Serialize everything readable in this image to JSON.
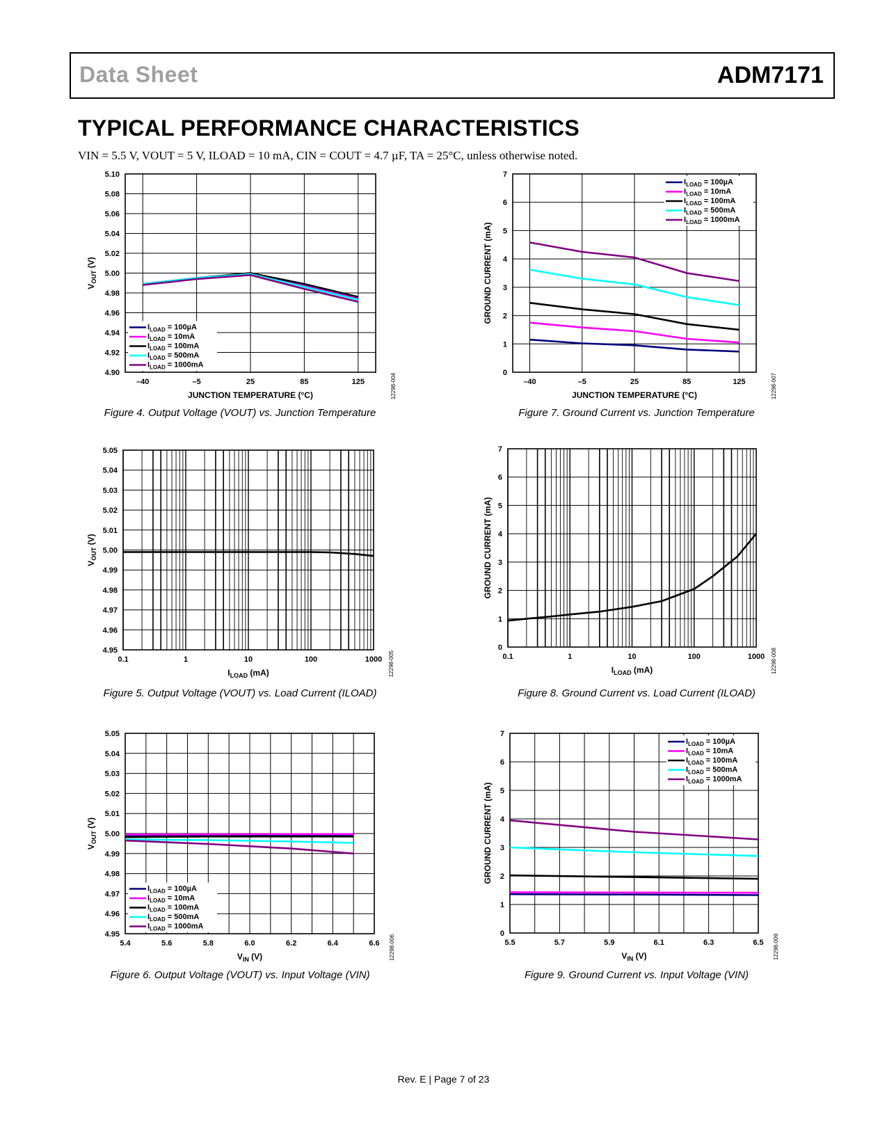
{
  "header": {
    "left": "Data Sheet",
    "right": "ADM7171"
  },
  "section_title": "TYPICAL PERFORMANCE CHARACTERISTICS",
  "conditions": "VIN = 5.5 V, VOUT = 5 V, ILOAD = 10 mA, CIN = COUT = 4.7 µF, TA = 25°C, unless otherwise noted.",
  "footer": "Rev. E | Page 7 of 23",
  "colors": {
    "100uA": "#00007f",
    "10mA": "#ff00ff",
    "100mA": "#000000",
    "500mA": "#00ffff",
    "1000mA": "#800080"
  },
  "chart_data": [
    {
      "id": "fig4",
      "type": "line",
      "caption": "Figure 4. Output Voltage (VOUT) vs. Junction Temperature",
      "code": "12298-004",
      "xlabel": "JUNCTION TEMPERATURE (°C)",
      "ylabel": "VOUT (V)",
      "xscale": "linear",
      "xticks": [
        -40,
        -5,
        25,
        85,
        125
      ],
      "xtick_labels": [
        "–40",
        "–5",
        "25",
        "85",
        "125"
      ],
      "xlim": [
        -40,
        125
      ],
      "yticks": [
        4.9,
        4.92,
        4.94,
        4.96,
        4.98,
        5.0,
        5.02,
        5.04,
        5.06,
        5.08,
        5.1
      ],
      "ytick_labels": [
        "4.90",
        "4.92",
        "4.94",
        "4.96",
        "4.98",
        "5.00",
        "5.02",
        "5.04",
        "5.06",
        "5.08",
        "5.10"
      ],
      "ylim": [
        4.9,
        5.1
      ],
      "x_grid_categorical": true,
      "legend": "bottom-left",
      "series": [
        {
          "name": "ILOAD = 100µA",
          "key": "100uA",
          "x": [
            -40,
            -5,
            25,
            85,
            125
          ],
          "y": [
            4.989,
            4.995,
            5.0,
            4.988,
            4.975
          ]
        },
        {
          "name": "ILOAD = 10mA",
          "key": "10mA",
          "x": [
            -40,
            -5,
            25,
            85,
            125
          ],
          "y": [
            4.989,
            4.995,
            4.999,
            4.987,
            4.974
          ]
        },
        {
          "name": "ILOAD = 100mA",
          "key": "100mA",
          "x": [
            -40,
            -5,
            25,
            85,
            125
          ],
          "y": [
            4.989,
            4.995,
            5.0,
            4.989,
            4.976
          ]
        },
        {
          "name": "ILOAD = 500mA",
          "key": "500mA",
          "x": [
            -40,
            -5,
            25,
            85,
            125
          ],
          "y": [
            4.989,
            4.995,
            4.999,
            4.986,
            4.973
          ]
        },
        {
          "name": "ILOAD = 1000mA",
          "key": "1000mA",
          "x": [
            -40,
            -5,
            25,
            85,
            125
          ],
          "y": [
            4.988,
            4.994,
            4.998,
            4.984,
            4.971
          ]
        }
      ]
    },
    {
      "id": "fig7",
      "type": "line",
      "caption": "Figure 7. Ground Current vs. Junction Temperature",
      "code": "12298-007",
      "xlabel": "JUNCTION TEMPERATURE (°C)",
      "ylabel": "GROUND CURRENT (mA)",
      "xscale": "linear",
      "xticks": [
        -40,
        -5,
        25,
        85,
        125
      ],
      "xtick_labels": [
        "–40",
        "–5",
        "25",
        "85",
        "125"
      ],
      "xlim": [
        -40,
        125
      ],
      "yticks": [
        0,
        1,
        2,
        3,
        4,
        5,
        6,
        7
      ],
      "ytick_labels": [
        "0",
        "1",
        "2",
        "3",
        "4",
        "5",
        "6",
        "7"
      ],
      "ylim": [
        0,
        7
      ],
      "x_grid_categorical": true,
      "legend": "top-right",
      "series": [
        {
          "name": "ILOAD = 100µA",
          "key": "100uA",
          "x": [
            -40,
            -5,
            25,
            85,
            125
          ],
          "y": [
            1.15,
            1.02,
            0.95,
            0.8,
            0.73
          ]
        },
        {
          "name": "ILOAD = 10mA",
          "key": "10mA",
          "x": [
            -40,
            -5,
            25,
            85,
            125
          ],
          "y": [
            1.75,
            1.58,
            1.45,
            1.18,
            1.05
          ]
        },
        {
          "name": "ILOAD = 100mA",
          "key": "100mA",
          "x": [
            -40,
            -5,
            25,
            85,
            125
          ],
          "y": [
            2.45,
            2.22,
            2.05,
            1.7,
            1.5
          ]
        },
        {
          "name": "ILOAD = 500mA",
          "key": "500mA",
          "x": [
            -40,
            -5,
            25,
            85,
            125
          ],
          "y": [
            3.62,
            3.3,
            3.1,
            2.65,
            2.37
          ]
        },
        {
          "name": "ILOAD = 1000mA",
          "key": "1000mA",
          "x": [
            -40,
            -5,
            25,
            85,
            125
          ],
          "y": [
            4.58,
            4.25,
            4.05,
            3.5,
            3.22
          ]
        }
      ]
    },
    {
      "id": "fig5",
      "type": "line",
      "caption": "Figure 5. Output Voltage (VOUT) vs. Load Current (ILOAD)",
      "code": "12298-005",
      "xlabel": "ILOAD (mA)",
      "ylabel": "VOUT (V)",
      "xscale": "log",
      "xticks": [
        0.1,
        1,
        10,
        100,
        1000
      ],
      "xtick_labels": [
        "0.1",
        "1",
        "10",
        "100",
        "1000"
      ],
      "xlim": [
        0.1,
        1000
      ],
      "yticks": [
        4.95,
        4.96,
        4.97,
        4.98,
        4.99,
        5.0,
        5.01,
        5.02,
        5.03,
        5.04,
        5.05
      ],
      "ytick_labels": [
        "4.95",
        "4.96",
        "4.97",
        "4.98",
        "4.99",
        "5.00",
        "5.01",
        "5.02",
        "5.03",
        "5.04",
        "5.05"
      ],
      "ylim": [
        4.95,
        5.05
      ],
      "series": [
        {
          "key": "100mA",
          "x": [
            0.1,
            1,
            10,
            100,
            200,
            500,
            1000
          ],
          "y": [
            4.999,
            4.999,
            4.999,
            4.999,
            4.9988,
            4.998,
            4.997
          ]
        }
      ]
    },
    {
      "id": "fig8",
      "type": "line",
      "caption": "Figure 8. Ground Current vs. Load Current (ILOAD)",
      "code": "12298-008",
      "xlabel": "ILOAD (mA)",
      "ylabel": "GROUND CURRENT (mA)",
      "xscale": "log",
      "xticks": [
        0.1,
        1,
        10,
        100,
        1000
      ],
      "xtick_labels": [
        "0.1",
        "1",
        "10",
        "100",
        "1000"
      ],
      "xlim": [
        0.1,
        1000
      ],
      "yticks": [
        0,
        1,
        2,
        3,
        4,
        5,
        6,
        7
      ],
      "ytick_labels": [
        "0",
        "1",
        "2",
        "3",
        "4",
        "5",
        "6",
        "7"
      ],
      "ylim": [
        0,
        7
      ],
      "series": [
        {
          "key": "100mA",
          "x": [
            0.1,
            0.2,
            0.5,
            1,
            3,
            10,
            30,
            100,
            200,
            500,
            1000
          ],
          "y": [
            0.93,
            1.0,
            1.08,
            1.15,
            1.25,
            1.42,
            1.62,
            2.05,
            2.5,
            3.2,
            4.0
          ]
        }
      ]
    },
    {
      "id": "fig6",
      "type": "line",
      "caption": "Figure 6. Output Voltage (VOUT) vs. Input Voltage (VIN)",
      "code": "12298-006",
      "xlabel": "VIN (V)",
      "ylabel": "VOUT (V)",
      "xscale": "linear",
      "xticks": [
        5.4,
        5.6,
        5.8,
        6.0,
        6.2,
        6.4,
        6.6
      ],
      "xtick_labels": [
        "5.4",
        "5.6",
        "5.8",
        "6.0",
        "6.2",
        "6.4",
        "6.6"
      ],
      "xlim": [
        5.4,
        6.6
      ],
      "yticks": [
        4.95,
        4.96,
        4.97,
        4.98,
        4.99,
        5.0,
        5.01,
        5.02,
        5.03,
        5.04,
        5.05
      ],
      "ytick_labels": [
        "4.95",
        "4.96",
        "4.97",
        "4.98",
        "4.99",
        "5.00",
        "5.01",
        "5.02",
        "5.03",
        "5.04",
        "5.05"
      ],
      "ylim": [
        4.95,
        5.05
      ],
      "legend": "bottom-left",
      "series": [
        {
          "name": "ILOAD = 100µA",
          "key": "100uA",
          "x": [
            5.4,
            5.8,
            6.2,
            6.5
          ],
          "y": [
            4.9988,
            4.999,
            4.999,
            4.9988
          ]
        },
        {
          "name": "ILOAD = 10mA",
          "key": "10mA",
          "x": [
            5.4,
            5.8,
            6.2,
            6.5
          ],
          "y": [
            4.9995,
            4.9996,
            4.9997,
            4.9997
          ]
        },
        {
          "name": "ILOAD = 100mA",
          "key": "100mA",
          "x": [
            5.4,
            5.8,
            6.2,
            6.5
          ],
          "y": [
            4.9982,
            4.9985,
            4.9985,
            4.9985
          ]
        },
        {
          "name": "ILOAD = 500mA",
          "key": "500mA",
          "x": [
            5.4,
            5.8,
            6.2,
            6.5
          ],
          "y": [
            4.997,
            4.9967,
            4.996,
            4.9953
          ]
        },
        {
          "name": "ILOAD = 1000mA",
          "key": "1000mA",
          "x": [
            5.4,
            5.8,
            6.2,
            6.5
          ],
          "y": [
            4.9965,
            4.9948,
            4.9925,
            4.99
          ]
        }
      ]
    },
    {
      "id": "fig9",
      "type": "line",
      "caption": "Figure 9. Ground Current vs. Input Voltage (VIN)",
      "code": "12298-009",
      "xlabel": "VIN (V)",
      "ylabel": "GROUND CURRENT (mA)",
      "xscale": "linear",
      "xticks": [
        5.5,
        5.7,
        5.9,
        6.1,
        6.3,
        6.5
      ],
      "xtick_labels": [
        "5.5",
        "5.7",
        "5.9",
        "6.1",
        "6.3",
        "6.5"
      ],
      "xlim": [
        5.5,
        6.5
      ],
      "yticks": [
        0,
        1,
        2,
        3,
        4,
        5,
        6,
        7
      ],
      "ytick_labels": [
        "0",
        "1",
        "2",
        "3",
        "4",
        "5",
        "6",
        "7"
      ],
      "ylim": [
        0,
        7
      ],
      "legend": "top-right",
      "series": [
        {
          "name": "ILOAD = 100µA",
          "key": "100uA",
          "x": [
            5.5,
            6.0,
            6.5
          ],
          "y": [
            1.36,
            1.35,
            1.33
          ]
        },
        {
          "name": "ILOAD = 10mA",
          "key": "10mA",
          "x": [
            5.5,
            6.0,
            6.5
          ],
          "y": [
            1.43,
            1.42,
            1.41
          ]
        },
        {
          "name": "ILOAD = 100mA",
          "key": "100mA",
          "x": [
            5.5,
            6.0,
            6.5
          ],
          "y": [
            2.02,
            1.96,
            1.9
          ]
        },
        {
          "name": "ILOAD = 500mA",
          "key": "500mA",
          "x": [
            5.5,
            6.0,
            6.5
          ],
          "y": [
            3.0,
            2.83,
            2.7
          ]
        },
        {
          "name": "ILOAD = 1000mA",
          "key": "1000mA",
          "x": [
            5.5,
            6.0,
            6.5
          ],
          "y": [
            3.95,
            3.55,
            3.28
          ]
        }
      ]
    }
  ]
}
